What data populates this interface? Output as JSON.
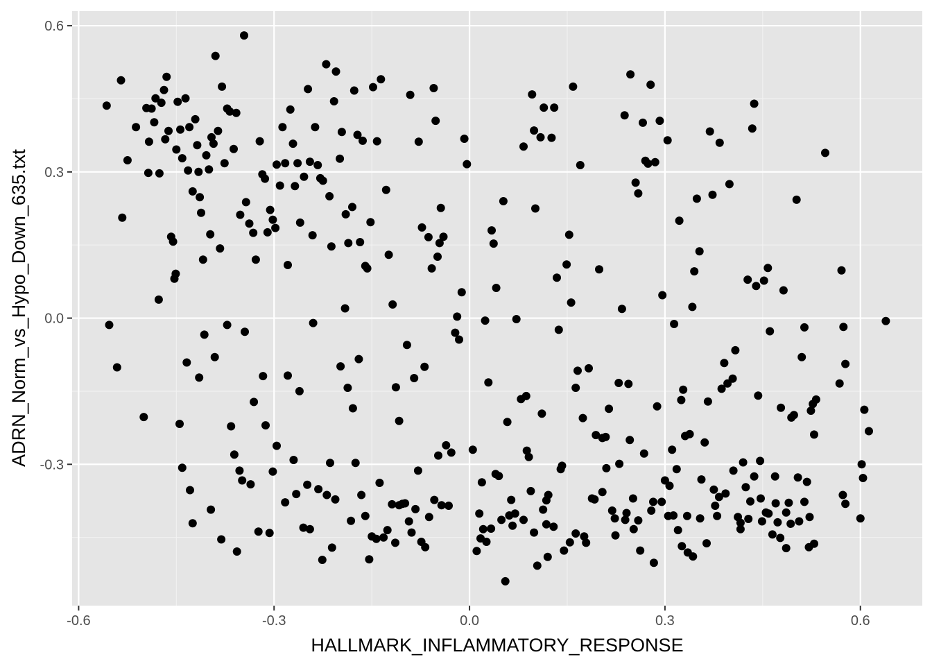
{
  "chart_data": {
    "type": "scatter",
    "title": "",
    "xlabel": "HALLMARK_INFLAMMATORY_RESPONSE",
    "ylabel": "ADRN_Norm_vs_Hypo_Down_635.txt",
    "xlim": [
      -0.61,
      0.695
    ],
    "ylim": [
      -0.59,
      0.63
    ],
    "xticks": [
      -0.6,
      -0.3,
      0.0,
      0.3,
      0.6
    ],
    "yticks": [
      -0.3,
      0.0,
      0.3,
      0.6
    ],
    "xtick_labels": [
      "-0.6",
      "-0.3",
      "0.0",
      "0.3",
      "0.6"
    ],
    "ytick_labels": [
      "-0.3",
      "0.0",
      "0.3",
      "0.6"
    ],
    "grid": true,
    "point_color": "#000000",
    "panel_color": "#e5e5e5",
    "points": [
      [
        -0.557,
        0.436
      ],
      [
        -0.535,
        0.488
      ],
      [
        -0.525,
        0.324
      ],
      [
        -0.512,
        0.392
      ],
      [
        -0.496,
        0.431
      ],
      [
        -0.493,
        0.298
      ],
      [
        -0.492,
        0.362
      ],
      [
        -0.488,
        0.43
      ],
      [
        -0.484,
        0.402
      ],
      [
        -0.482,
        0.451
      ],
      [
        -0.476,
        0.297
      ],
      [
        -0.473,
        0.442
      ],
      [
        -0.469,
        0.468
      ],
      [
        -0.467,
        0.367
      ],
      [
        -0.465,
        0.495
      ],
      [
        -0.462,
        0.384
      ],
      [
        -0.458,
        0.167
      ],
      [
        -0.455,
        0.157
      ],
      [
        -0.453,
        0.081
      ],
      [
        -0.45,
        0.346
      ],
      [
        -0.448,
        0.444
      ],
      [
        -0.444,
        0.387
      ],
      [
        -0.441,
        0.328
      ],
      [
        -0.436,
        0.451
      ],
      [
        -0.432,
        0.303
      ],
      [
        -0.43,
        0.392
      ],
      [
        -0.425,
        0.26
      ],
      [
        -0.421,
        0.408
      ],
      [
        -0.418,
        0.355
      ],
      [
        -0.416,
        0.3
      ],
      [
        -0.414,
        0.248
      ],
      [
        -0.412,
        0.216
      ],
      [
        -0.409,
        0.12
      ],
      [
        -0.404,
        0.334
      ],
      [
        -0.4,
        0.305
      ],
      [
        -0.398,
        0.172
      ],
      [
        -0.396,
        0.371
      ],
      [
        -0.393,
        0.358
      ],
      [
        -0.39,
        0.538
      ],
      [
        -0.386,
        0.384
      ],
      [
        -0.383,
        0.143
      ],
      [
        -0.38,
        0.475
      ],
      [
        -0.376,
        0.318
      ],
      [
        -0.372,
        0.43
      ],
      [
        -0.368,
        0.424
      ],
      [
        -0.362,
        0.347
      ],
      [
        -0.358,
        0.421
      ],
      [
        -0.352,
        0.212
      ],
      [
        -0.346,
        0.58
      ],
      [
        -0.343,
        0.238
      ],
      [
        -0.338,
        0.194
      ],
      [
        -0.332,
        0.175
      ],
      [
        -0.328,
        0.12
      ],
      [
        -0.322,
        0.363
      ],
      [
        -0.318,
        0.295
      ],
      [
        -0.314,
        0.286
      ],
      [
        -0.31,
        0.176
      ],
      [
        -0.306,
        0.222
      ],
      [
        -0.302,
        0.202
      ],
      [
        -0.298,
        0.185
      ],
      [
        -0.296,
        0.315
      ],
      [
        -0.291,
        0.272
      ],
      [
        -0.287,
        0.392
      ],
      [
        -0.283,
        0.318
      ],
      [
        -0.279,
        0.109
      ],
      [
        -0.275,
        0.428
      ],
      [
        -0.271,
        0.358
      ],
      [
        -0.268,
        0.271
      ],
      [
        -0.264,
        0.318
      ],
      [
        -0.26,
        0.196
      ],
      [
        -0.254,
        0.29
      ],
      [
        -0.248,
        0.47
      ],
      [
        -0.245,
        0.321
      ],
      [
        -0.241,
        0.17
      ],
      [
        -0.237,
        0.392
      ],
      [
        -0.233,
        0.314
      ],
      [
        -0.229,
        0.287
      ],
      [
        -0.225,
        0.282
      ],
      [
        -0.22,
        0.521
      ],
      [
        -0.215,
        0.25
      ],
      [
        -0.212,
        0.147
      ],
      [
        -0.208,
        0.445
      ],
      [
        -0.205,
        0.506
      ],
      [
        -0.199,
        0.327
      ],
      [
        -0.196,
        0.382
      ],
      [
        -0.19,
        0.213
      ],
      [
        -0.186,
        0.154
      ],
      [
        -0.18,
        0.228
      ],
      [
        -0.177,
        0.467
      ],
      [
        -0.172,
        0.376
      ],
      [
        -0.168,
        0.156
      ],
      [
        -0.164,
        0.364
      ],
      [
        -0.16,
        0.107
      ],
      [
        -0.157,
        0.102
      ],
      [
        -0.152,
        0.197
      ],
      [
        -0.148,
        0.474
      ],
      [
        -0.142,
        0.363
      ],
      [
        -0.136,
        0.49
      ],
      [
        -0.128,
        0.263
      ],
      [
        -0.124,
        0.13
      ],
      [
        -0.118,
        0.028
      ],
      [
        -0.113,
        -0.142
      ],
      [
        -0.108,
        -0.211
      ],
      [
        -0.103,
        -0.381
      ],
      [
        -0.096,
        -0.055
      ],
      [
        -0.091,
        0.458
      ],
      [
        -0.085,
        -0.123
      ],
      [
        -0.078,
        0.362
      ],
      [
        -0.073,
        0.186
      ],
      [
        -0.069,
        -0.1
      ],
      [
        -0.063,
        0.166
      ],
      [
        -0.058,
        0.102
      ],
      [
        -0.055,
        0.472
      ],
      [
        -0.052,
        0.405
      ],
      [
        -0.049,
        0.126
      ],
      [
        -0.046,
        0.154
      ],
      [
        -0.044,
        0.226
      ],
      [
        -0.04,
        0.167
      ],
      [
        -0.036,
        -0.261
      ],
      [
        -0.032,
        -0.385
      ],
      [
        -0.028,
        -0.276
      ],
      [
        -0.022,
        -0.03
      ],
      [
        -0.019,
        0.003
      ],
      [
        -0.016,
        -0.044
      ],
      [
        -0.012,
        0.053
      ],
      [
        -0.008,
        0.368
      ],
      [
        -0.004,
        0.316
      ],
      [
        0.005,
        -0.27
      ],
      [
        0.011,
        -0.478
      ],
      [
        0.015,
        -0.401
      ],
      [
        0.019,
        -0.337
      ],
      [
        0.024,
        -0.005
      ],
      [
        0.029,
        -0.132
      ],
      [
        0.034,
        0.18
      ],
      [
        0.037,
        0.153
      ],
      [
        0.041,
        0.062
      ],
      [
        0.045,
        -0.324
      ],
      [
        0.052,
        0.24
      ],
      [
        0.058,
        -0.213
      ],
      [
        0.061,
        -0.405
      ],
      [
        0.066,
        -0.426
      ],
      [
        0.072,
        -0.002
      ],
      [
        0.079,
        -0.166
      ],
      [
        0.083,
        0.352
      ],
      [
        0.087,
        -0.16
      ],
      [
        0.091,
        -0.285
      ],
      [
        0.096,
        0.459
      ],
      [
        0.099,
        0.385
      ],
      [
        0.101,
        0.225
      ],
      [
        0.104,
        -0.508
      ],
      [
        0.109,
        0.371
      ],
      [
        0.111,
        -0.196
      ],
      [
        0.114,
        0.432
      ],
      [
        0.118,
        -0.374
      ],
      [
        0.121,
        -0.363
      ],
      [
        0.126,
        0.37
      ],
      [
        0.13,
        0.432
      ],
      [
        0.134,
        0.083
      ],
      [
        0.137,
        -0.024
      ],
      [
        0.14,
        -0.31
      ],
      [
        0.145,
        -0.477
      ],
      [
        0.149,
        0.11
      ],
      [
        0.153,
        0.171
      ],
      [
        0.156,
        0.032
      ],
      [
        0.159,
        0.475
      ],
      [
        0.163,
        -0.143
      ],
      [
        0.166,
        -0.108
      ],
      [
        0.17,
        0.314
      ],
      [
        0.174,
        -0.205
      ],
      [
        0.179,
        -0.461
      ],
      [
        0.183,
        -0.103
      ],
      [
        0.188,
        -0.37
      ],
      [
        0.194,
        -0.24
      ],
      [
        0.199,
        0.1
      ],
      [
        0.204,
        -0.357
      ],
      [
        0.209,
        -0.244
      ],
      [
        0.214,
        -0.186
      ],
      [
        0.219,
        -0.395
      ],
      [
        0.224,
        -0.446
      ],
      [
        0.229,
        -0.133
      ],
      [
        0.234,
        0.019
      ],
      [
        0.238,
        0.416
      ],
      [
        0.241,
        -0.4
      ],
      [
        0.244,
        -0.135
      ],
      [
        0.247,
        0.5
      ],
      [
        0.251,
        -0.37
      ],
      [
        0.255,
        0.278
      ],
      [
        0.259,
        0.256
      ],
      [
        0.262,
        -0.477
      ],
      [
        0.266,
        0.401
      ],
      [
        0.27,
        0.323
      ],
      [
        0.274,
        0.317
      ],
      [
        0.278,
        0.479
      ],
      [
        0.282,
        -0.377
      ],
      [
        0.285,
        0.32
      ],
      [
        0.288,
        -0.181
      ],
      [
        0.292,
        0.405
      ],
      [
        0.296,
        0.047
      ],
      [
        0.3,
        -0.333
      ],
      [
        0.304,
        0.365
      ],
      [
        0.307,
        -0.344
      ],
      [
        0.311,
        -0.27
      ],
      [
        0.314,
        -0.012
      ],
      [
        0.318,
        -0.31
      ],
      [
        0.322,
        0.2
      ],
      [
        0.325,
        -0.168
      ],
      [
        0.328,
        -0.147
      ],
      [
        0.331,
        -0.242
      ],
      [
        0.335,
        -0.481
      ],
      [
        0.338,
        -0.238
      ],
      [
        0.342,
        0.023
      ],
      [
        0.345,
        0.096
      ],
      [
        0.349,
        0.245
      ],
      [
        0.353,
        0.137
      ],
      [
        0.356,
        -0.331
      ],
      [
        0.361,
        -0.255
      ],
      [
        0.366,
        -0.171
      ],
      [
        0.369,
        0.383
      ],
      [
        0.373,
        0.253
      ],
      [
        0.377,
        -0.385
      ],
      [
        0.38,
        -0.406
      ],
      [
        0.384,
        0.36
      ],
      [
        0.387,
        -0.145
      ],
      [
        0.391,
        -0.092
      ],
      [
        0.396,
        -0.134
      ],
      [
        0.399,
        0.275
      ],
      [
        0.404,
        -0.124
      ],
      [
        0.408,
        -0.066
      ],
      [
        0.412,
        -0.408
      ],
      [
        0.416,
        -0.433
      ],
      [
        0.42,
        -0.296
      ],
      [
        0.424,
        -0.347
      ],
      [
        0.427,
        0.079
      ],
      [
        0.431,
        -0.376
      ],
      [
        0.434,
        0.389
      ],
      [
        0.437,
        0.44
      ],
      [
        0.44,
        0.066
      ],
      [
        0.443,
        -0.159
      ],
      [
        0.446,
        -0.293
      ],
      [
        0.449,
        -0.417
      ],
      [
        0.452,
        0.077
      ],
      [
        0.455,
        -0.399
      ],
      [
        0.458,
        0.103
      ],
      [
        0.461,
        -0.027
      ],
      [
        0.465,
        -0.444
      ],
      [
        0.469,
        -0.325
      ],
      [
        0.473,
        -0.419
      ],
      [
        0.478,
        -0.184
      ],
      [
        0.482,
        0.057
      ],
      [
        0.486,
        -0.472
      ],
      [
        0.49,
        -0.379
      ],
      [
        0.494,
        -0.204
      ],
      [
        0.498,
        -0.199
      ],
      [
        0.502,
        0.243
      ],
      [
        0.506,
        -0.417
      ],
      [
        0.51,
        -0.08
      ],
      [
        0.514,
        -0.019
      ],
      [
        0.518,
        -0.336
      ],
      [
        0.521,
        -0.47
      ],
      [
        0.524,
        -0.19
      ],
      [
        0.527,
        -0.176
      ],
      [
        0.529,
        -0.239
      ],
      [
        0.532,
        -0.167
      ],
      [
        0.546,
        0.339
      ],
      [
        0.568,
        -0.134
      ],
      [
        0.571,
        0.098
      ],
      [
        0.574,
        -0.018
      ],
      [
        0.577,
        -0.094
      ],
      [
        0.6,
        -0.411
      ],
      [
        0.602,
        -0.3
      ],
      [
        0.604,
        -0.328
      ],
      [
        0.606,
        -0.188
      ],
      [
        0.613,
        -0.232
      ],
      [
        0.639,
        -0.006
      ],
      [
        -0.553,
        -0.014
      ],
      [
        -0.541,
        -0.101
      ],
      [
        -0.533,
        0.206
      ],
      [
        -0.5,
        -0.203
      ],
      [
        -0.477,
        0.038
      ],
      [
        -0.451,
        0.091
      ],
      [
        -0.445,
        -0.217
      ],
      [
        -0.441,
        -0.307
      ],
      [
        -0.434,
        -0.091
      ],
      [
        -0.429,
        -0.353
      ],
      [
        -0.425,
        -0.421
      ],
      [
        -0.415,
        -0.122
      ],
      [
        -0.407,
        -0.034
      ],
      [
        -0.397,
        -0.393
      ],
      [
        -0.391,
        -0.08
      ],
      [
        -0.381,
        -0.454
      ],
      [
        -0.372,
        -0.014
      ],
      [
        -0.366,
        -0.222
      ],
      [
        -0.361,
        -0.28
      ],
      [
        -0.357,
        -0.479
      ],
      [
        -0.353,
        -0.313
      ],
      [
        -0.349,
        -0.333
      ],
      [
        -0.345,
        -0.028
      ],
      [
        -0.336,
        -0.341
      ],
      [
        -0.331,
        -0.172
      ],
      [
        -0.324,
        -0.438
      ],
      [
        -0.317,
        -0.119
      ],
      [
        -0.313,
        -0.22
      ],
      [
        -0.307,
        -0.441
      ],
      [
        -0.302,
        -0.315
      ],
      [
        -0.296,
        -0.262
      ],
      [
        -0.283,
        -0.378
      ],
      [
        -0.279,
        -0.118
      ],
      [
        -0.27,
        -0.291
      ],
      [
        -0.266,
        -0.361
      ],
      [
        -0.261,
        -0.15
      ],
      [
        -0.255,
        -0.43
      ],
      [
        -0.249,
        -0.342
      ],
      [
        -0.245,
        -0.433
      ],
      [
        -0.24,
        -0.01
      ],
      [
        -0.232,
        -0.351
      ],
      [
        -0.226,
        -0.496
      ],
      [
        -0.219,
        -0.363
      ],
      [
        -0.214,
        -0.297
      ],
      [
        -0.211,
        -0.471
      ],
      [
        -0.206,
        -0.372
      ],
      [
        -0.198,
        -0.099
      ],
      [
        -0.191,
        0.02
      ],
      [
        -0.187,
        -0.143
      ],
      [
        -0.182,
        -0.416
      ],
      [
        -0.179,
        -0.185
      ],
      [
        -0.175,
        -0.297
      ],
      [
        -0.17,
        -0.084
      ],
      [
        -0.166,
        -0.363
      ],
      [
        -0.16,
        -0.406
      ],
      [
        -0.154,
        -0.495
      ],
      [
        -0.15,
        -0.448
      ],
      [
        -0.143,
        -0.453
      ],
      [
        -0.138,
        -0.338
      ],
      [
        -0.132,
        -0.45
      ],
      [
        -0.126,
        -0.435
      ],
      [
        -0.119,
        -0.382
      ],
      [
        -0.114,
        -0.461
      ],
      [
        -0.108,
        -0.384
      ],
      [
        -0.099,
        -0.38
      ],
      [
        -0.093,
        -0.417
      ],
      [
        -0.089,
        -0.44
      ],
      [
        -0.083,
        -0.392
      ],
      [
        -0.079,
        -0.313
      ],
      [
        -0.074,
        -0.459
      ],
      [
        -0.068,
        -0.47
      ],
      [
        -0.062,
        -0.408
      ],
      [
        -0.054,
        -0.373
      ],
      [
        -0.048,
        -0.282
      ],
      [
        -0.043,
        -0.384
      ],
      [
        0.017,
        -0.452
      ],
      [
        0.021,
        -0.433
      ],
      [
        0.026,
        -0.459
      ],
      [
        0.033,
        -0.432
      ],
      [
        0.04,
        -0.32
      ],
      [
        0.049,
        -0.414
      ],
      [
        0.055,
        -0.54
      ],
      [
        0.064,
        -0.373
      ],
      [
        0.07,
        -0.401
      ],
      [
        0.083,
        -0.414
      ],
      [
        0.088,
        -0.272
      ],
      [
        0.094,
        -0.355
      ],
      [
        0.099,
        -0.44
      ],
      [
        0.113,
        -0.393
      ],
      [
        0.118,
        -0.423
      ],
      [
        0.12,
        -0.49
      ],
      [
        0.129,
        -0.428
      ],
      [
        0.142,
        -0.303
      ],
      [
        0.154,
        -0.46
      ],
      [
        0.163,
        -0.442
      ],
      [
        0.176,
        -0.448
      ],
      [
        0.192,
        -0.372
      ],
      [
        0.204,
        -0.246
      ],
      [
        0.21,
        -0.308
      ],
      [
        0.223,
        -0.411
      ],
      [
        0.23,
        -0.299
      ],
      [
        0.239,
        -0.414
      ],
      [
        0.246,
        -0.25
      ],
      [
        0.252,
        -0.433
      ],
      [
        0.259,
        -0.415
      ],
      [
        0.268,
        -0.278
      ],
      [
        0.279,
        -0.395
      ],
      [
        0.283,
        -0.502
      ],
      [
        0.295,
        -0.377
      ],
      [
        0.305,
        -0.406
      ],
      [
        0.313,
        -0.405
      ],
      [
        0.32,
        -0.435
      ],
      [
        0.326,
        -0.468
      ],
      [
        0.334,
        -0.406
      ],
      [
        0.343,
        -0.489
      ],
      [
        0.354,
        -0.411
      ],
      [
        0.364,
        -0.462
      ],
      [
        0.375,
        -0.352
      ],
      [
        0.383,
        -0.367
      ],
      [
        0.393,
        -0.36
      ],
      [
        0.405,
        -0.313
      ],
      [
        0.416,
        -0.42
      ],
      [
        0.428,
        -0.412
      ],
      [
        0.437,
        -0.325
      ],
      [
        0.447,
        -0.37
      ],
      [
        0.459,
        -0.401
      ],
      [
        0.47,
        -0.38
      ],
      [
        0.477,
        -0.451
      ],
      [
        0.486,
        -0.399
      ],
      [
        0.493,
        -0.422
      ],
      [
        0.504,
        -0.327
      ],
      [
        0.514,
        -0.377
      ],
      [
        0.522,
        -0.408
      ],
      [
        0.529,
        -0.463
      ],
      [
        0.573,
        -0.363
      ],
      [
        0.577,
        -0.381
      ]
    ]
  }
}
